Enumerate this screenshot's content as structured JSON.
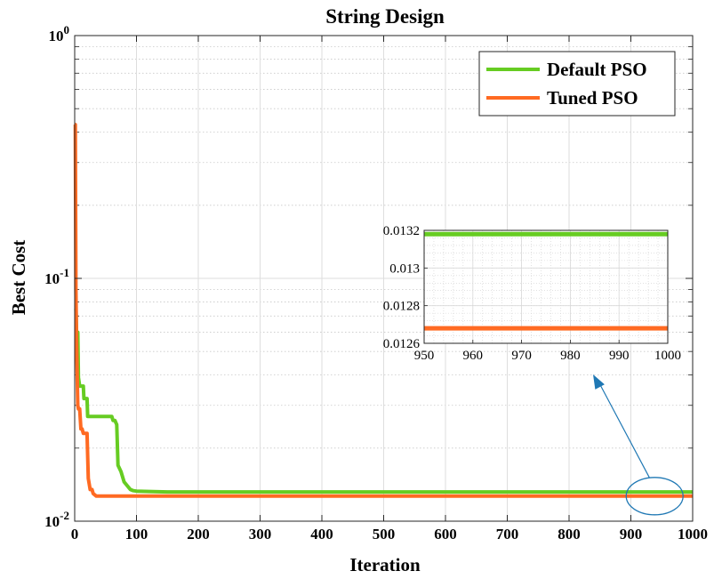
{
  "chart_data": [
    {
      "type": "line",
      "title": "String Design",
      "xlabel": "Iteration",
      "ylabel": "Best Cost",
      "xlim": [
        0,
        1000
      ],
      "ylim": [
        0.01,
        1
      ],
      "yscale": "log",
      "grid": true,
      "legend_position": "top-right",
      "x_ticks": [
        "0",
        "100",
        "200",
        "300",
        "400",
        "500",
        "600",
        "700",
        "800",
        "900",
        "1000"
      ],
      "y_ticks": [
        {
          "value": 1,
          "base": "10",
          "exp": "0"
        },
        {
          "value": 0.1,
          "base": "10",
          "exp": "-1"
        },
        {
          "value": 0.01,
          "base": "10",
          "exp": "-2"
        }
      ],
      "series": [
        {
          "name": "Default PSO",
          "color": "#66cc22",
          "x": [
            0,
            2,
            3,
            5,
            6,
            8,
            12,
            14,
            15,
            20,
            21,
            25,
            30,
            50,
            60,
            62,
            65,
            68,
            70,
            75,
            80,
            85,
            90,
            95,
            100,
            120,
            150,
            1000
          ],
          "y": [
            0.075,
            0.075,
            0.06,
            0.06,
            0.039,
            0.036,
            0.036,
            0.036,
            0.032,
            0.032,
            0.027,
            0.027,
            0.027,
            0.027,
            0.027,
            0.026,
            0.026,
            0.025,
            0.017,
            0.016,
            0.0145,
            0.014,
            0.0135,
            0.01335,
            0.0133,
            0.01325,
            0.0132,
            0.0132
          ]
        },
        {
          "name": "Tuned PSO",
          "color": "#ff6a22",
          "x": [
            0,
            1,
            2,
            3,
            4,
            5,
            6,
            8,
            10,
            12,
            14,
            15,
            20,
            22,
            25,
            28,
            30,
            35,
            40,
            60,
            1000
          ],
          "y": [
            0.43,
            0.43,
            0.09,
            0.055,
            0.04,
            0.03,
            0.029,
            0.029,
            0.024,
            0.024,
            0.023,
            0.023,
            0.023,
            0.015,
            0.0135,
            0.0135,
            0.013,
            0.01268,
            0.01268,
            0.01268,
            0.01268
          ]
        }
      ]
    },
    {
      "type": "line",
      "inset": true,
      "xlim": [
        950,
        1000
      ],
      "ylim": [
        0.0126,
        0.0132
      ],
      "grid": true,
      "x_ticks": [
        "950",
        "960",
        "970",
        "980",
        "990",
        "1000"
      ],
      "y_ticks": [
        "0.0132",
        "0.013",
        "0.0128",
        "0.0126"
      ],
      "series": [
        {
          "name": "Default PSO",
          "color": "#66cc22",
          "x": [
            950,
            1000
          ],
          "y": [
            0.01318,
            0.01318
          ]
        },
        {
          "name": "Tuned PSO",
          "color": "#ff6a22",
          "x": [
            950,
            1000
          ],
          "y": [
            0.01268,
            0.01268
          ]
        }
      ]
    }
  ]
}
